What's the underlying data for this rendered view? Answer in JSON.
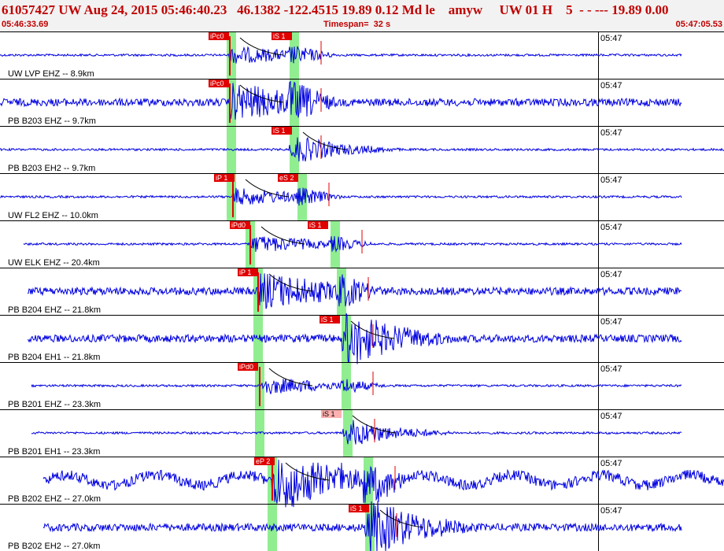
{
  "header": {
    "title": "61057427 UW Aug 24, 2015 05:46:40.23   46.1382 -122.4515 19.89 0.12 Md le    amyw     UW 01 H    5  - - --- 19.89 0.00",
    "start_time": "05:46:33.69",
    "timespan": "Timespan=  32 s",
    "end_time": "05:47:05.53"
  },
  "colors": {
    "trace": "#0000e0",
    "pick_box": "#e00000",
    "pick_box_light": "#ffb0b0",
    "window": "#90ee90",
    "header_text": "#c00000",
    "divider": "#000000"
  },
  "time_tick_label": "05:47",
  "traces": [
    {
      "label": "UW LVP EHZ -- 8.9km",
      "amp": "small",
      "p_pick": "iPc0",
      "s_pick": "iS 1"
    },
    {
      "label": "PB B203 EHZ -- 9.7km",
      "amp": "medium",
      "p_pick": "iPc0",
      "s_pick": ""
    },
    {
      "label": "PB B203 EH2 -- 9.7km",
      "amp": "small",
      "p_pick": "",
      "s_pick": "iS 1"
    },
    {
      "label": "UW FL2 EHZ -- 10.0km",
      "amp": "small",
      "p_pick": "iP 1",
      "s_pick": "eS 2"
    },
    {
      "label": "UW ELK EHZ -- 20.4km",
      "amp": "small",
      "p_pick": "iPd0",
      "s_pick": "iS 1"
    },
    {
      "label": "PB B204 EHZ -- 21.8km",
      "amp": "medium",
      "p_pick": "iP 1",
      "s_pick": ""
    },
    {
      "label": "PB B204 EH1 -- 21.8km",
      "amp": "medium",
      "p_pick": "",
      "s_pick": "iS 1"
    },
    {
      "label": "PB B201 EHZ -- 23.3km",
      "amp": "small",
      "p_pick": "iPd0",
      "s_pick": ""
    },
    {
      "label": "PB B201 EH1 -- 23.3km",
      "amp": "small",
      "p_pick": "",
      "s_pick": "iS 1"
    },
    {
      "label": "PB B202 EHZ -- 27.0km",
      "amp": "large",
      "p_pick": "eP 2",
      "s_pick": ""
    },
    {
      "label": "PB B202 EH2 -- 27.0km",
      "amp": "medium",
      "p_pick": "",
      "s_pick": "iS 1"
    }
  ]
}
